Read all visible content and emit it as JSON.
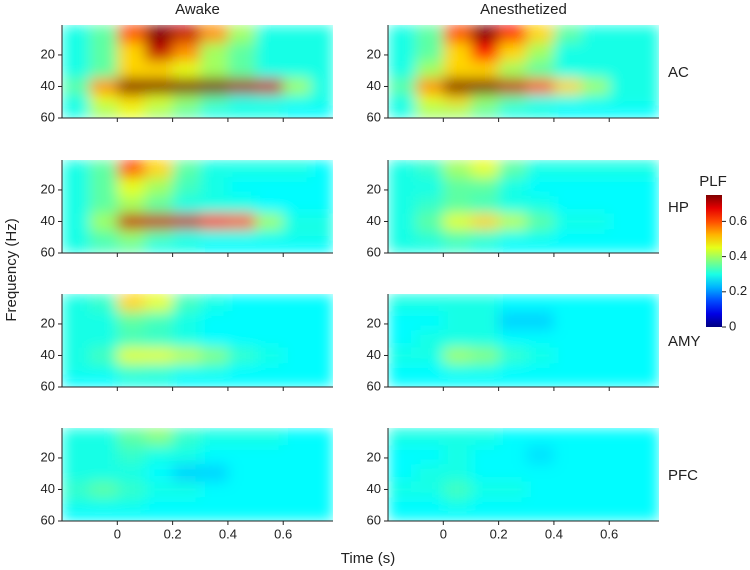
{
  "chart_data": {
    "type": "heatmap",
    "x_label": "Time (s)",
    "y_label": "Frequency (Hz)",
    "columns": [
      "Awake",
      "Anesthetized"
    ],
    "rows": [
      "AC",
      "HP",
      "AMY",
      "PFC"
    ],
    "x_edges": [
      -0.2,
      -0.1,
      0,
      0.1,
      0.2,
      0.3,
      0.4,
      0.5,
      0.6,
      0.7,
      0.78
    ],
    "y_edges": [
      1,
      12,
      24,
      35,
      45,
      52,
      60
    ],
    "xlim": [
      -0.2,
      0.78
    ],
    "ylim": [
      1,
      60
    ],
    "y_reversed": true,
    "xticks": [
      0,
      0.2,
      0.4,
      0.6
    ],
    "yticks": [
      20,
      40,
      60
    ],
    "colorbar": {
      "label": "PLF",
      "lim": [
        0,
        0.75
      ],
      "ticks": [
        0,
        0.2,
        0.4,
        0.6
      ]
    },
    "panels": [
      {
        "values": [
          [
            0.3,
            0.35,
            0.6,
            0.75,
            0.7,
            0.55,
            0.4,
            0.3,
            0.3,
            0.3
          ],
          [
            0.3,
            0.35,
            0.5,
            0.7,
            0.55,
            0.4,
            0.35,
            0.3,
            0.3,
            0.3
          ],
          [
            0.3,
            0.35,
            0.5,
            0.5,
            0.45,
            0.4,
            0.35,
            0.3,
            0.3,
            0.3
          ],
          [
            0.35,
            0.55,
            0.75,
            0.75,
            0.75,
            0.75,
            0.72,
            0.7,
            0.4,
            0.3
          ],
          [
            0.3,
            0.45,
            0.5,
            0.45,
            0.4,
            0.35,
            0.3,
            0.3,
            0.3,
            0.3
          ],
          [
            0.3,
            0.4,
            0.45,
            0.4,
            0.35,
            0.3,
            0.3,
            0.3,
            0.28,
            0.28
          ]
        ]
      },
      {
        "values": [
          [
            0.3,
            0.35,
            0.6,
            0.75,
            0.65,
            0.5,
            0.35,
            0.3,
            0.3,
            0.3
          ],
          [
            0.3,
            0.35,
            0.5,
            0.65,
            0.5,
            0.4,
            0.3,
            0.3,
            0.3,
            0.3
          ],
          [
            0.3,
            0.4,
            0.5,
            0.5,
            0.4,
            0.35,
            0.3,
            0.3,
            0.3,
            0.3
          ],
          [
            0.35,
            0.55,
            0.75,
            0.75,
            0.7,
            0.6,
            0.5,
            0.4,
            0.3,
            0.3
          ],
          [
            0.3,
            0.45,
            0.5,
            0.4,
            0.35,
            0.3,
            0.3,
            0.3,
            0.3,
            0.3
          ],
          [
            0.3,
            0.4,
            0.4,
            0.35,
            0.3,
            0.3,
            0.28,
            0.28,
            0.28,
            0.28
          ]
        ]
      },
      {
        "values": [
          [
            0.3,
            0.35,
            0.6,
            0.5,
            0.35,
            0.3,
            0.3,
            0.3,
            0.3,
            0.28
          ],
          [
            0.3,
            0.35,
            0.45,
            0.4,
            0.33,
            0.3,
            0.28,
            0.28,
            0.28,
            0.28
          ],
          [
            0.3,
            0.35,
            0.4,
            0.35,
            0.3,
            0.3,
            0.3,
            0.28,
            0.28,
            0.28
          ],
          [
            0.3,
            0.4,
            0.7,
            0.7,
            0.7,
            0.65,
            0.6,
            0.4,
            0.3,
            0.3
          ],
          [
            0.3,
            0.35,
            0.4,
            0.35,
            0.3,
            0.3,
            0.3,
            0.3,
            0.3,
            0.3
          ],
          [
            0.3,
            0.33,
            0.35,
            0.3,
            0.3,
            0.28,
            0.28,
            0.28,
            0.28,
            0.28
          ]
        ]
      },
      {
        "values": [
          [
            0.3,
            0.32,
            0.4,
            0.45,
            0.35,
            0.3,
            0.3,
            0.3,
            0.3,
            0.3
          ],
          [
            0.3,
            0.3,
            0.35,
            0.35,
            0.3,
            0.28,
            0.28,
            0.28,
            0.28,
            0.28
          ],
          [
            0.3,
            0.32,
            0.35,
            0.33,
            0.3,
            0.3,
            0.28,
            0.28,
            0.28,
            0.28
          ],
          [
            0.3,
            0.35,
            0.45,
            0.5,
            0.42,
            0.35,
            0.3,
            0.3,
            0.28,
            0.28
          ],
          [
            0.3,
            0.32,
            0.35,
            0.33,
            0.3,
            0.3,
            0.28,
            0.28,
            0.28,
            0.28
          ],
          [
            0.3,
            0.3,
            0.32,
            0.3,
            0.28,
            0.28,
            0.28,
            0.28,
            0.28,
            0.28
          ]
        ]
      },
      {
        "values": [
          [
            0.3,
            0.32,
            0.5,
            0.45,
            0.33,
            0.3,
            0.28,
            0.28,
            0.28,
            0.28
          ],
          [
            0.3,
            0.3,
            0.35,
            0.33,
            0.3,
            0.28,
            0.28,
            0.28,
            0.28,
            0.28
          ],
          [
            0.3,
            0.3,
            0.33,
            0.32,
            0.3,
            0.28,
            0.28,
            0.28,
            0.28,
            0.28
          ],
          [
            0.3,
            0.33,
            0.45,
            0.45,
            0.42,
            0.38,
            0.32,
            0.3,
            0.28,
            0.28
          ],
          [
            0.3,
            0.3,
            0.33,
            0.32,
            0.3,
            0.3,
            0.28,
            0.28,
            0.28,
            0.28
          ],
          [
            0.28,
            0.28,
            0.3,
            0.3,
            0.28,
            0.28,
            0.28,
            0.28,
            0.28,
            0.28
          ]
        ]
      },
      {
        "values": [
          [
            0.3,
            0.3,
            0.3,
            0.3,
            0.28,
            0.28,
            0.28,
            0.28,
            0.28,
            0.28
          ],
          [
            0.28,
            0.28,
            0.3,
            0.3,
            0.25,
            0.25,
            0.28,
            0.28,
            0.28,
            0.28
          ],
          [
            0.28,
            0.3,
            0.3,
            0.3,
            0.28,
            0.28,
            0.28,
            0.28,
            0.28,
            0.28
          ],
          [
            0.3,
            0.3,
            0.4,
            0.38,
            0.32,
            0.3,
            0.28,
            0.28,
            0.28,
            0.28
          ],
          [
            0.28,
            0.28,
            0.3,
            0.3,
            0.28,
            0.28,
            0.28,
            0.28,
            0.28,
            0.28
          ],
          [
            0.28,
            0.28,
            0.28,
            0.28,
            0.28,
            0.28,
            0.28,
            0.28,
            0.28,
            0.28
          ]
        ]
      },
      {
        "values": [
          [
            0.3,
            0.3,
            0.35,
            0.38,
            0.32,
            0.3,
            0.3,
            0.3,
            0.28,
            0.28
          ],
          [
            0.3,
            0.3,
            0.32,
            0.3,
            0.3,
            0.28,
            0.28,
            0.28,
            0.28,
            0.28
          ],
          [
            0.3,
            0.3,
            0.3,
            0.28,
            0.25,
            0.25,
            0.28,
            0.28,
            0.28,
            0.28
          ],
          [
            0.32,
            0.35,
            0.32,
            0.3,
            0.3,
            0.28,
            0.28,
            0.28,
            0.28,
            0.28
          ],
          [
            0.3,
            0.3,
            0.3,
            0.28,
            0.28,
            0.28,
            0.28,
            0.28,
            0.28,
            0.28
          ],
          [
            0.28,
            0.28,
            0.28,
            0.28,
            0.28,
            0.28,
            0.28,
            0.28,
            0.28,
            0.28
          ]
        ]
      },
      {
        "values": [
          [
            0.3,
            0.3,
            0.3,
            0.3,
            0.28,
            0.28,
            0.28,
            0.28,
            0.28,
            0.28
          ],
          [
            0.28,
            0.28,
            0.3,
            0.28,
            0.28,
            0.26,
            0.28,
            0.28,
            0.28,
            0.28
          ],
          [
            0.28,
            0.3,
            0.3,
            0.28,
            0.28,
            0.28,
            0.28,
            0.28,
            0.28,
            0.28
          ],
          [
            0.3,
            0.3,
            0.33,
            0.3,
            0.3,
            0.28,
            0.28,
            0.28,
            0.28,
            0.28
          ],
          [
            0.28,
            0.28,
            0.3,
            0.28,
            0.28,
            0.28,
            0.28,
            0.28,
            0.28,
            0.28
          ],
          [
            0.28,
            0.28,
            0.28,
            0.28,
            0.28,
            0.28,
            0.28,
            0.28,
            0.28,
            0.28
          ]
        ]
      }
    ]
  }
}
